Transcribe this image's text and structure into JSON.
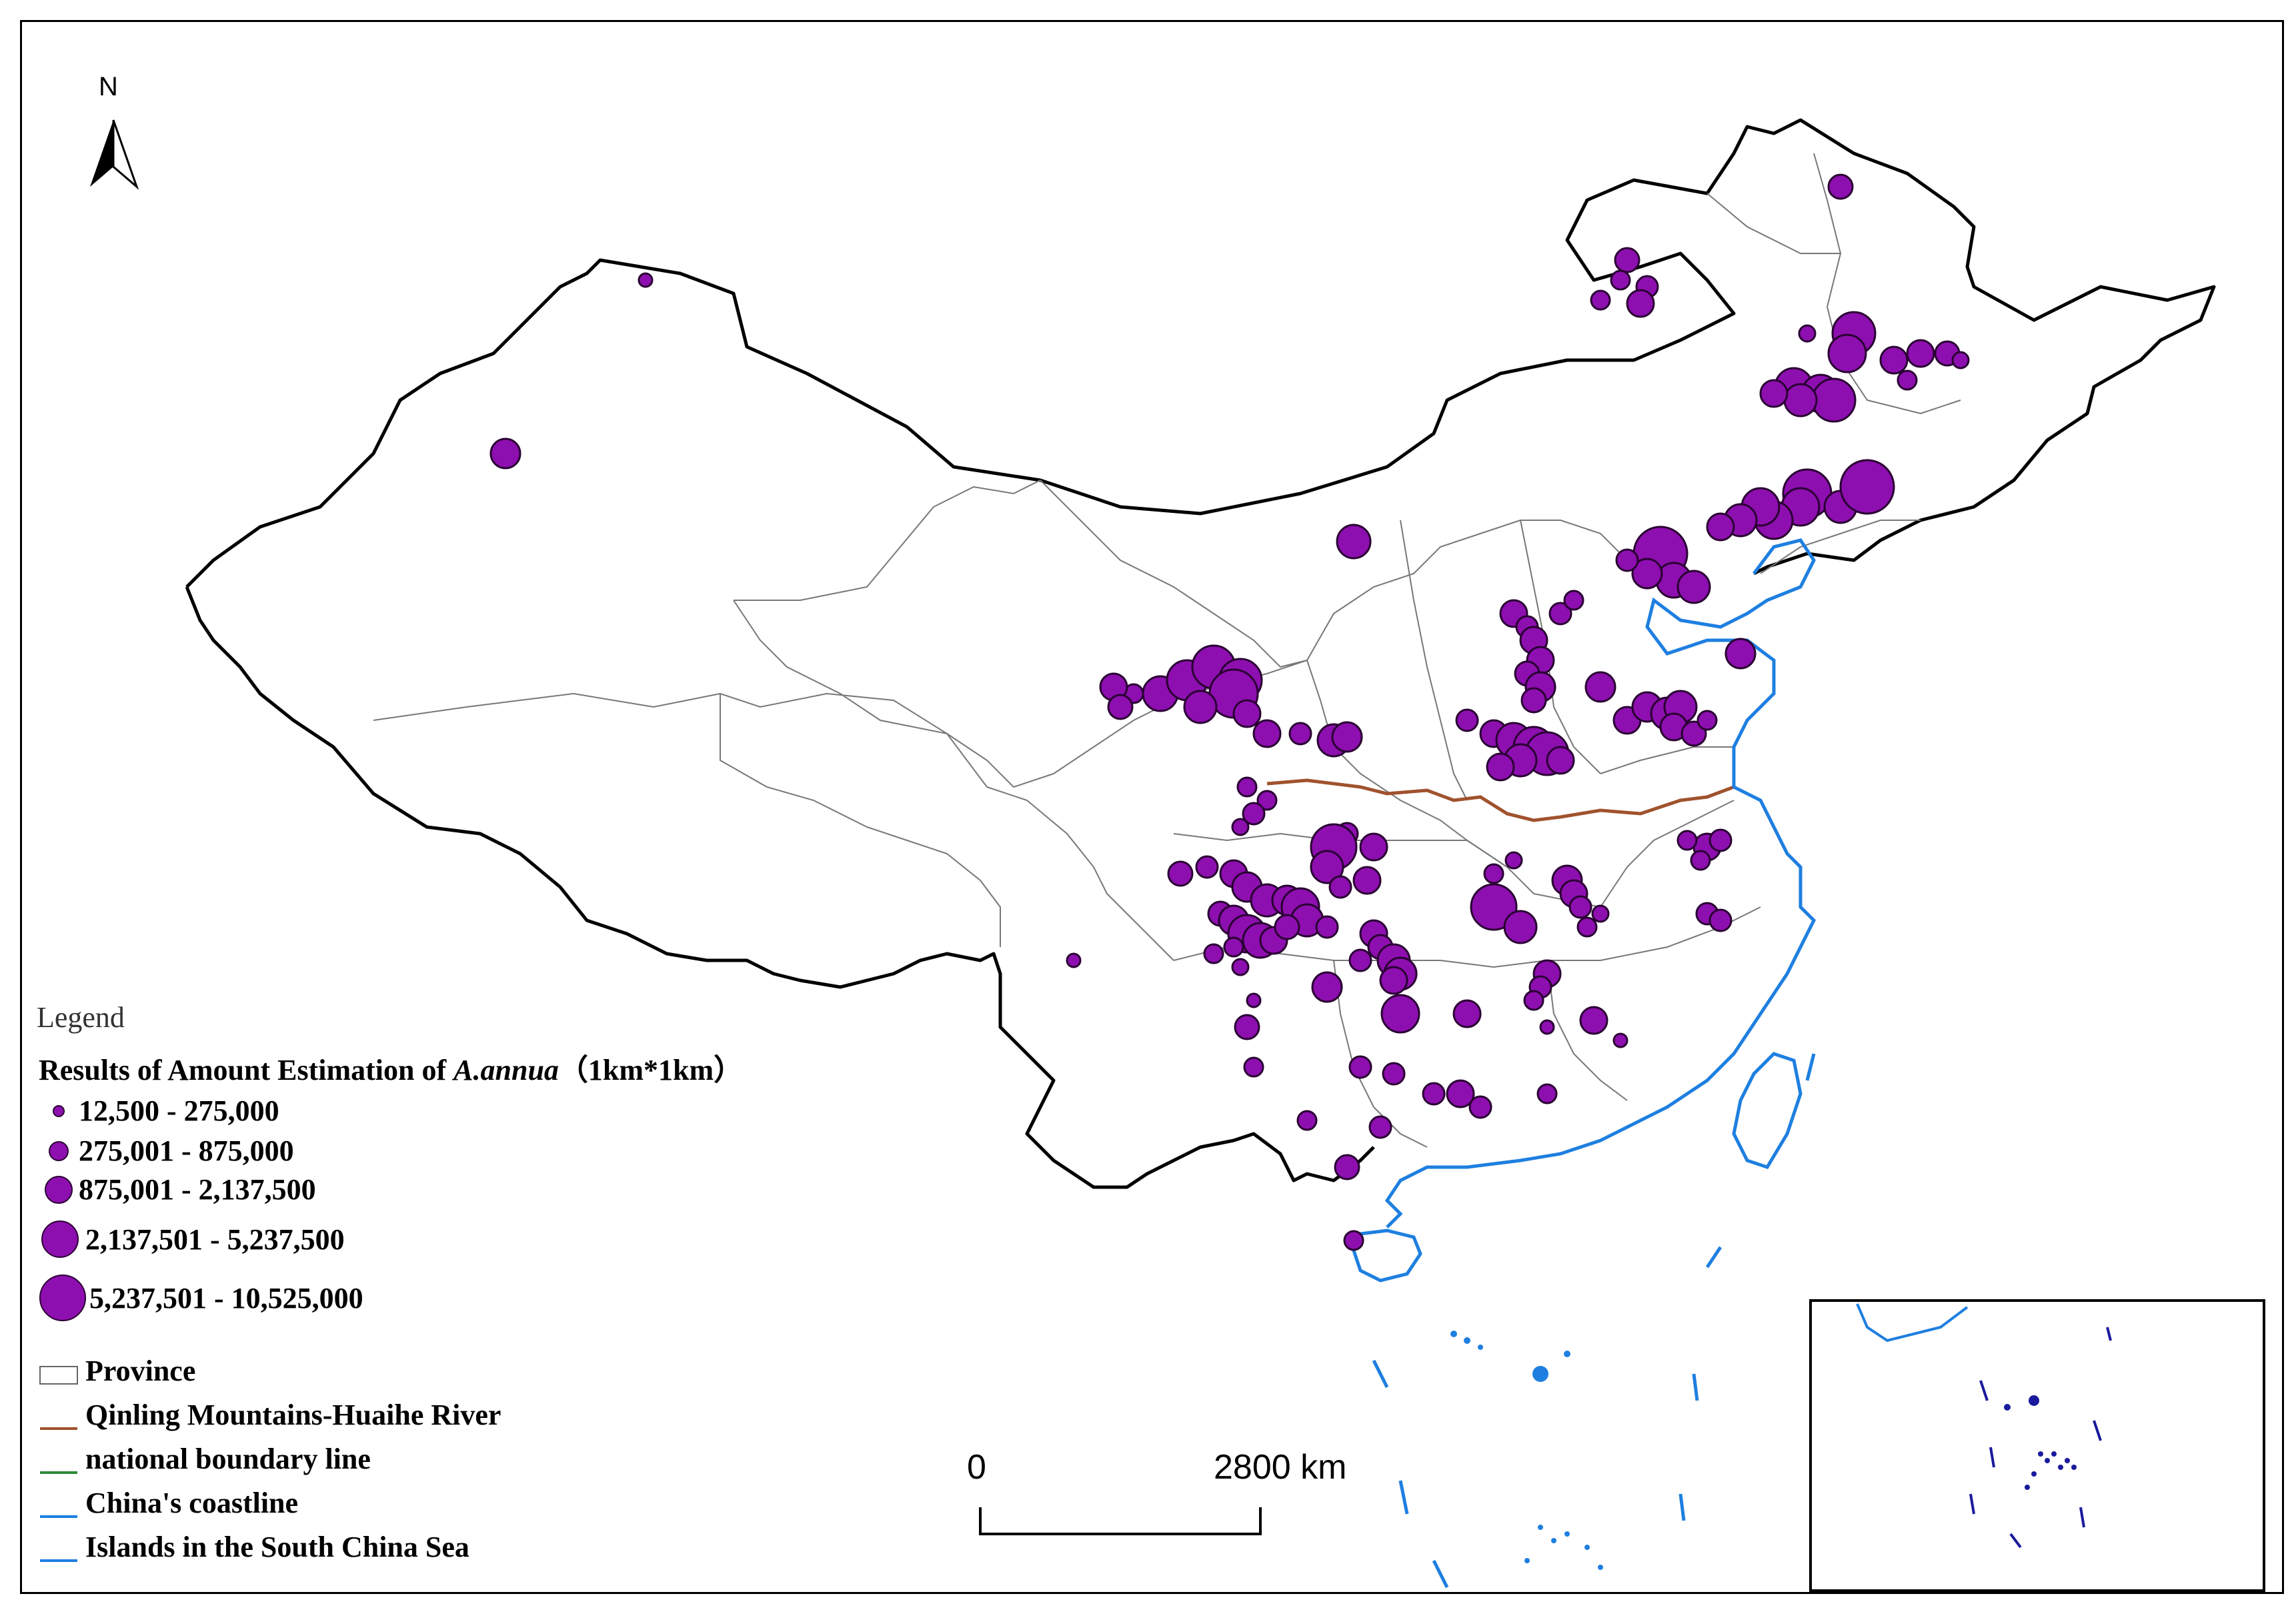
{
  "north_arrow": {
    "label": "N"
  },
  "legend": {
    "heading": "Legend",
    "subtitle_prefix": "Results of Amount Estimation of ",
    "subtitle_species": "A.annua",
    "subtitle_suffix": "（1km*1km）",
    "classes": [
      {
        "label": "12,500 - 275,000"
      },
      {
        "label": "275,001 - 875,000"
      },
      {
        "label": "875,001 - 2,137,500"
      },
      {
        "label": "2,137,501 - 5,237,500"
      },
      {
        "label": "5,237,501 - 10,525,000"
      }
    ],
    "layers": [
      {
        "label": "Province",
        "color": "#666666"
      },
      {
        "label": "Qinling Mountains-Huaihe River",
        "color": "#a0522d"
      },
      {
        "label": "national boundary line",
        "color": "#2e8b3a"
      },
      {
        "label": "China's coastline",
        "color": "#1e7fe0"
      },
      {
        "label": "Islands in the South China Sea",
        "color": "#1e7fe0"
      }
    ]
  },
  "scale_bar": {
    "start": "0",
    "end": "2800 km"
  },
  "colors": {
    "point_fill": "#8e0fb0",
    "point_stroke": "#2a0033",
    "coast": "#1e7fe0",
    "island_dark": "#1a1a9c"
  }
}
